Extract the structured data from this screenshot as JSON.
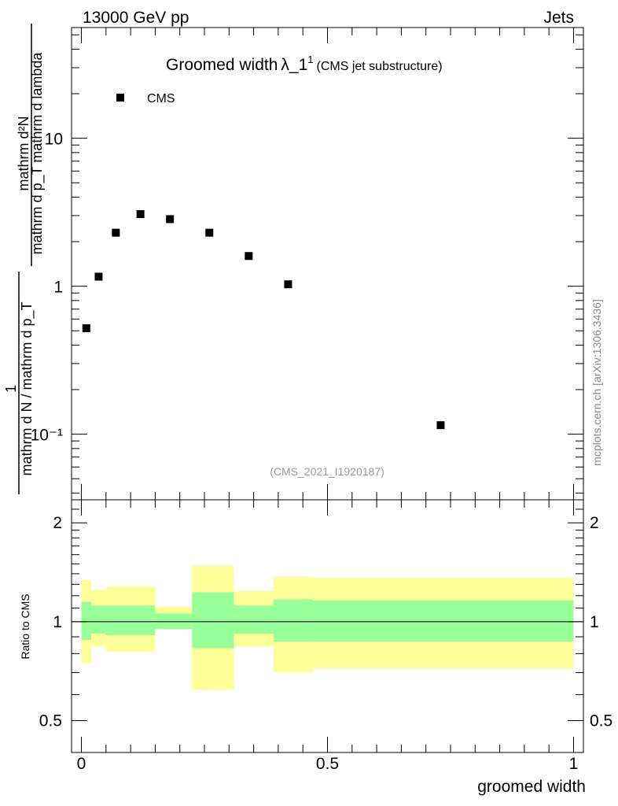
{
  "header": {
    "energy_label": "13000 GeV pp",
    "process_label": "Jets"
  },
  "main_plot": {
    "title_main": "Groomed width",
    "title_symbol": "λ_1",
    "title_superscript": "1",
    "title_paren": "(CMS jet substructure)",
    "legend_label": "CMS",
    "analysis_id": "(CMS_2021_I1920187)",
    "ylabel_numerator": "mathrm d²N",
    "ylabel_denominator": "mathrm d p_T mathrm d lambda",
    "ylabel_prefactor_num": "1",
    "ylabel_prefactor_den": "mathrm d N / mathrm d p_T",
    "ytick_labels": [
      "10⁻¹",
      "1",
      "10"
    ]
  },
  "ratio_plot": {
    "ylabel": "Ratio to CMS",
    "ytick_labels": [
      "0.5",
      "1",
      "2"
    ]
  },
  "xaxis": {
    "label": "groomed width",
    "tick_labels": [
      "0",
      "0.5",
      "1"
    ]
  },
  "watermark": "mcplots.cern.ch [arXiv:1306.3436]",
  "colors": {
    "marker": "#000000",
    "band_inner": "#99ff99",
    "band_outer": "#ffff99",
    "analysis_id": "#999999",
    "watermark": "#888888"
  },
  "chart_data": [
    {
      "type": "scatter",
      "panel": "main",
      "yscale": "log",
      "xlim": [
        -0.02,
        1.02
      ],
      "ylim": [
        0.036,
        56
      ],
      "series": [
        {
          "name": "CMS",
          "x": [
            0.01,
            0.035,
            0.07,
            0.12,
            0.18,
            0.26,
            0.34,
            0.42,
            0.73
          ],
          "y": [
            0.52,
            1.16,
            2.3,
            3.07,
            2.84,
            2.3,
            1.6,
            1.03,
            0.115
          ]
        }
      ]
    },
    {
      "type": "area",
      "panel": "ratio",
      "yscale": "log",
      "ylim": [
        0.4,
        2.35
      ],
      "reference_line": 1,
      "bins": [
        [
          0.0,
          0.02
        ],
        [
          0.02,
          0.05
        ],
        [
          0.05,
          0.15
        ],
        [
          0.15,
          0.225
        ],
        [
          0.225,
          0.31
        ],
        [
          0.31,
          0.39
        ],
        [
          0.39,
          0.47
        ],
        [
          0.47,
          1.0
        ]
      ],
      "inner_band": {
        "low": [
          0.88,
          0.92,
          0.91,
          0.95,
          0.83,
          0.92,
          0.87,
          0.87
        ],
        "high": [
          1.15,
          1.12,
          1.12,
          1.06,
          1.23,
          1.12,
          1.17,
          1.16
        ]
      },
      "outer_band": {
        "low": [
          0.75,
          0.84,
          0.81,
          0.95,
          0.62,
          0.84,
          0.7,
          0.72
        ],
        "high": [
          1.34,
          1.25,
          1.28,
          1.11,
          1.48,
          1.24,
          1.37,
          1.36
        ]
      }
    }
  ]
}
